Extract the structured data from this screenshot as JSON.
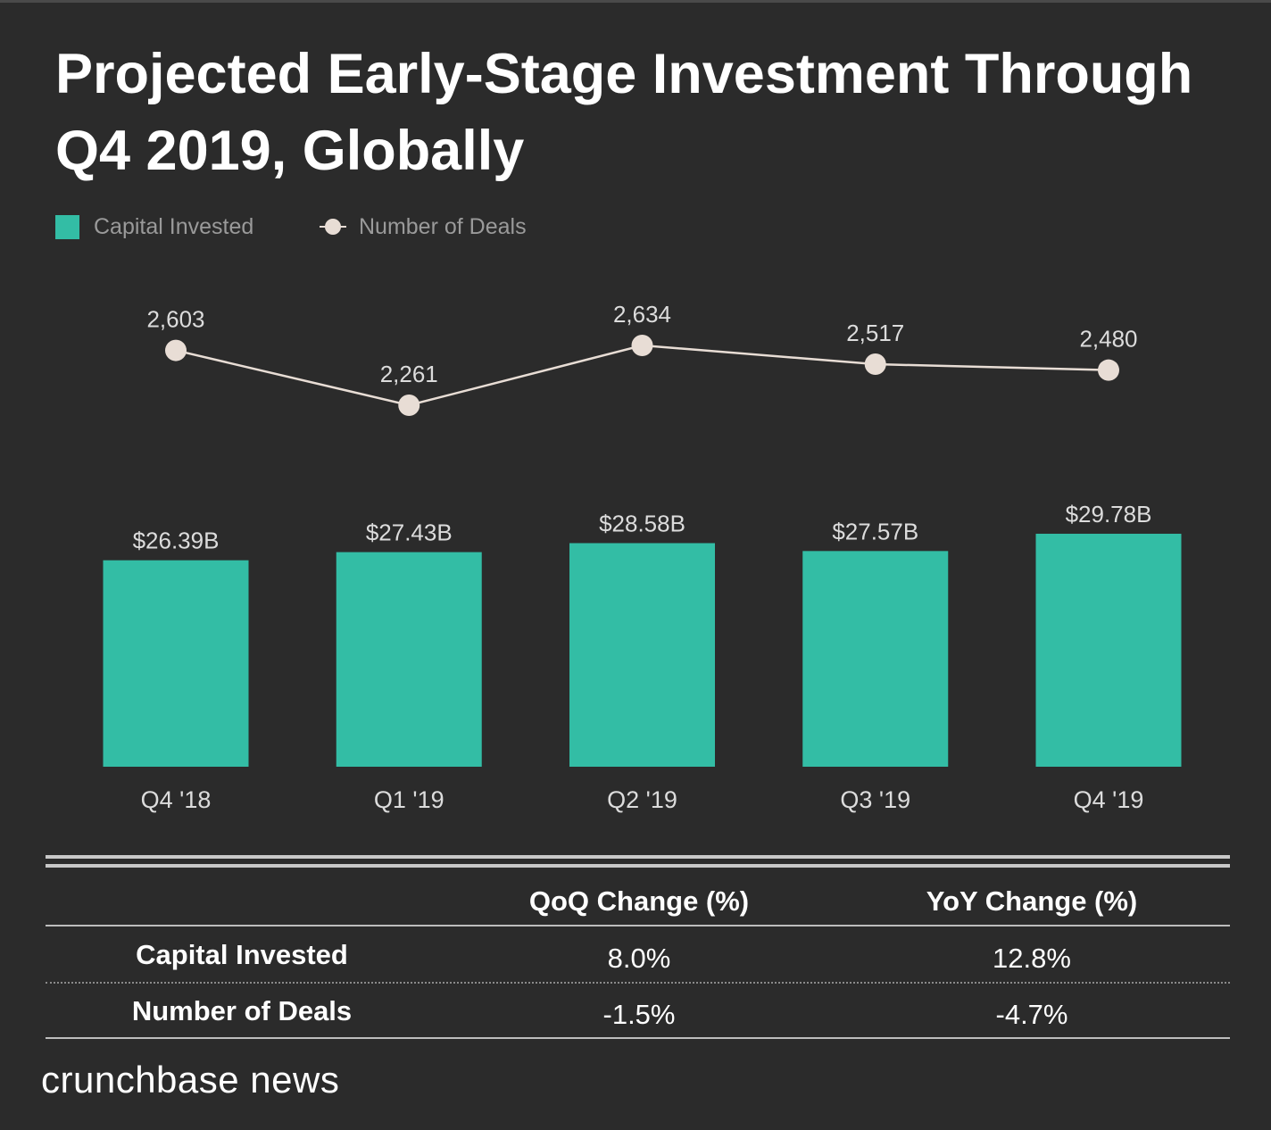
{
  "title": "Projected Early-Stage Investment Through Q4 2019, Globally",
  "legend": {
    "bar_label": "Capital Invested",
    "line_label": "Number of Deals"
  },
  "colors": {
    "background": "#2b2b2b",
    "bar": "#33bda5",
    "line": "#e8ddd5",
    "text_light": "#dcdcdc",
    "legend_text": "#9a9a9a"
  },
  "chart_data": {
    "type": "bar",
    "title": "Projected Early-Stage Investment Through Q4 2019, Globally",
    "categories": [
      "Q4 '18",
      "Q1 '19",
      "Q2 '19",
      "Q3 '19",
      "Q4 '19"
    ],
    "series": [
      {
        "name": "Capital Invested",
        "type": "bar",
        "unit": "B USD",
        "values": [
          26.39,
          27.43,
          28.58,
          27.57,
          29.78
        ],
        "labels": [
          "$26.39B",
          "$27.43B",
          "$28.58B",
          "$27.57B",
          "$29.78B"
        ]
      },
      {
        "name": "Number of Deals",
        "type": "line",
        "values": [
          2603,
          2261,
          2634,
          2517,
          2480
        ],
        "labels": [
          "2,603",
          "2,261",
          "2,634",
          "2,517",
          "2,480"
        ]
      }
    ],
    "xlabel": "",
    "ylabel": "",
    "ylim": [
      0,
      30
    ],
    "grid": false,
    "legend_position": "top-left"
  },
  "table": {
    "headers": [
      "",
      "QoQ Change (%)",
      "YoY Change (%)"
    ],
    "rows": [
      {
        "label": "Capital Invested",
        "qoq": "8.0%",
        "yoy": "12.8%"
      },
      {
        "label": "Number of Deals",
        "qoq": "-1.5%",
        "yoy": "-4.7%"
      }
    ]
  },
  "brand": "crunchbase news"
}
